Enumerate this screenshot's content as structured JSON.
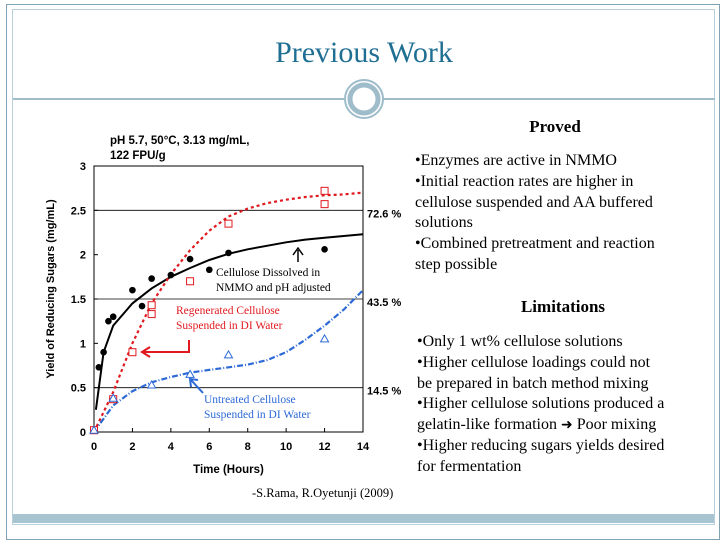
{
  "slide": {
    "title": "Previous Work",
    "citation": "-S.Rama, R.Oyetunji (2009)"
  },
  "colors": {
    "title": "#1f6f93",
    "black_series": "#000000",
    "red_series": "#e0191f",
    "blue_series": "#2d6ad6"
  },
  "proved": {
    "heading": "Proved",
    "lines": [
      "•Enzymes are active in NMMO",
      "•Initial reaction rates are higher in",
      "cellulose suspended and AA buffered",
      "solutions",
      "•Combined pretreatment and reaction",
      "step possible"
    ]
  },
  "limitations": {
    "heading": "Limitations",
    "lines": [
      "•Only 1 wt% cellulose solutions",
      "•Higher cellulose loadings could not",
      "be prepared in batch method mixing",
      "•Higher cellulose solutions produced a",
      "gelatin-like formation",
      "Poor mixing",
      "•Higher reducing sugars yields desired",
      "for fermentation"
    ],
    "arrow_icon": "right-arrow-icon"
  },
  "chart_data": {
    "type": "scatter",
    "title": "",
    "conditions": [
      "pH 5.7, 50°C, 3.13 mg/mL,",
      "122 FPU/g"
    ],
    "xlabel": "Time (Hours)",
    "ylabel": "Yield of Reducing Sugars (mg/mL)",
    "xlim": [
      0,
      14
    ],
    "ylim": [
      0,
      3
    ],
    "xticks": [
      "0",
      "2",
      "4",
      "6",
      "8",
      "10",
      "12",
      "14"
    ],
    "yticks": [
      "0",
      "0.5",
      "1",
      "1.5",
      "2",
      "2.5",
      "3"
    ],
    "grid": "horizontal at 0.5, 1.5, 2.5",
    "percent_labels": [
      {
        "text": "72.6 %",
        "y": 2.5
      },
      {
        "text": "43.5 %",
        "y": 1.5
      },
      {
        "text": "14.5 %",
        "y": 0.5
      }
    ],
    "series": [
      {
        "label": [
          "Cellulose Dissolved in",
          "NMMO and pH adjusted"
        ],
        "color": "#000000",
        "marker": "filled-circle",
        "x": [
          0,
          0.25,
          0.5,
          0.75,
          1,
          2,
          2.5,
          3,
          4,
          5,
          6,
          7,
          12
        ],
        "y": [
          0.03,
          0.73,
          0.9,
          1.25,
          1.3,
          1.6,
          1.42,
          1.73,
          1.77,
          1.95,
          1.83,
          2.02,
          2.06
        ],
        "fit": [
          [
            0.1,
            0.25
          ],
          [
            0.5,
            0.9
          ],
          [
            1,
            1.2
          ],
          [
            2,
            1.45
          ],
          [
            3,
            1.62
          ],
          [
            4,
            1.75
          ],
          [
            5,
            1.85
          ],
          [
            6,
            1.94
          ],
          [
            7,
            2.01
          ],
          [
            8,
            2.06
          ],
          [
            9,
            2.1
          ],
          [
            10,
            2.14
          ],
          [
            11,
            2.17
          ],
          [
            12,
            2.19
          ],
          [
            13,
            2.21
          ],
          [
            14,
            2.23
          ]
        ]
      },
      {
        "label": [
          "Regenerated Cellulose",
          "Suspended in DI Water"
        ],
        "color": "#e0191f",
        "marker": "open-square",
        "x": [
          0,
          1,
          2,
          3,
          3,
          5,
          7,
          12,
          12
        ],
        "y": [
          0.02,
          0.37,
          0.9,
          1.33,
          1.43,
          1.7,
          2.35,
          2.72,
          2.57
        ],
        "fit": [
          [
            0,
            0
          ],
          [
            1,
            0.45
          ],
          [
            2,
            1.0
          ],
          [
            3,
            1.45
          ],
          [
            4,
            1.78
          ],
          [
            5,
            2.05
          ],
          [
            6,
            2.27
          ],
          [
            7,
            2.43
          ],
          [
            8,
            2.52
          ],
          [
            9,
            2.58
          ],
          [
            10,
            2.62
          ],
          [
            11,
            2.65
          ],
          [
            12,
            2.67
          ],
          [
            13,
            2.68
          ],
          [
            14,
            2.7
          ]
        ]
      },
      {
        "label": [
          "Untreated Cellulose",
          "Suspended in DI Water"
        ],
        "color": "#2d6ad6",
        "marker": "open-triangle",
        "x": [
          0,
          1,
          3,
          5,
          7,
          12
        ],
        "y": [
          0.02,
          0.38,
          0.53,
          0.65,
          0.87,
          1.05
        ],
        "fit": [
          [
            0,
            0
          ],
          [
            1,
            0.3
          ],
          [
            2,
            0.46
          ],
          [
            3,
            0.56
          ],
          [
            4,
            0.62
          ],
          [
            5,
            0.67
          ],
          [
            6,
            0.7
          ],
          [
            7,
            0.73
          ],
          [
            8,
            0.76
          ],
          [
            9,
            0.81
          ],
          [
            10,
            0.9
          ],
          [
            11,
            1.04
          ],
          [
            12,
            1.2
          ],
          [
            13,
            1.38
          ],
          [
            14,
            1.6
          ]
        ]
      }
    ]
  }
}
